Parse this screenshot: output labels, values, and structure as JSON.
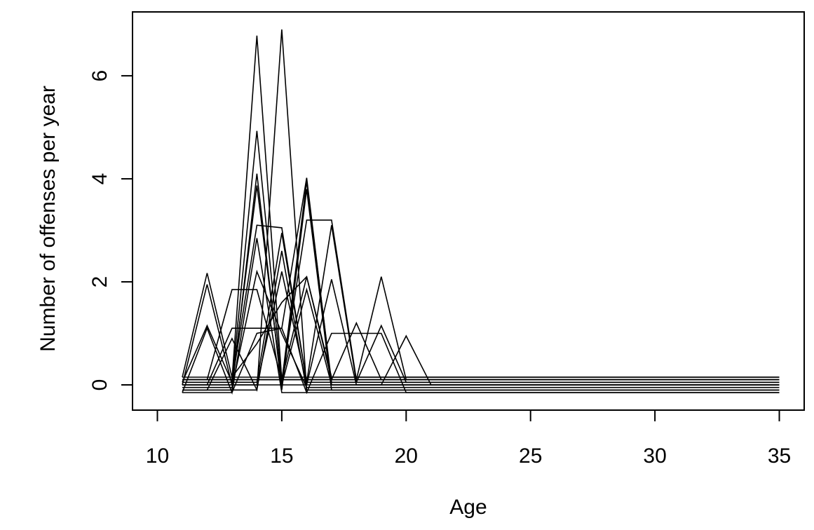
{
  "chart_data": {
    "type": "line",
    "xlabel": "Age",
    "ylabel": "Number of offenses per year",
    "x": [
      11,
      12,
      13,
      14,
      15,
      16,
      17,
      18,
      19,
      20,
      21,
      22,
      23,
      24,
      25,
      26,
      27,
      28,
      29,
      30,
      31,
      32,
      33,
      34,
      35
    ],
    "xlim": [
      9.0,
      36.0
    ],
    "ylim": [
      -0.49,
      7.24
    ],
    "xticks": [
      10,
      15,
      20,
      25,
      30,
      35
    ],
    "yticks": [
      0,
      2,
      4,
      6
    ],
    "series": [
      {
        "color": "#000000",
        "values": [
          0.1,
          0.1,
          0.1,
          6.78,
          0.1,
          0.1,
          0.1,
          0.1,
          0.1,
          0.1,
          0.1,
          0.1,
          0.1,
          0.1,
          0.1,
          0.1,
          0.1,
          0.1,
          0.1,
          0.1,
          0.1,
          0.1,
          0.1,
          0.1,
          0.1
        ]
      },
      {
        "color": "#000000",
        "values": [
          -0.1,
          -0.1,
          -0.1,
          -0.1,
          6.9,
          -0.1,
          -0.1,
          -0.1,
          -0.1,
          -0.1,
          -0.1,
          -0.1,
          -0.1,
          -0.1,
          -0.1,
          -0.1,
          -0.1,
          -0.1,
          -0.1,
          -0.1,
          -0.1,
          -0.1,
          -0.1,
          -0.1,
          -0.1
        ]
      },
      {
        "color": "#000000",
        "values": [
          0.15,
          2.17,
          0.15,
          0.15,
          0.15,
          0.15,
          0.15,
          0.15,
          0.15,
          0.15,
          0.15,
          0.15,
          0.15,
          0.15,
          0.15,
          0.15,
          0.15,
          0.15,
          0.15,
          0.15,
          0.15,
          0.15,
          0.15,
          0.15,
          0.15
        ]
      },
      {
        "color": "#000000",
        "values": [
          0,
          1.95,
          0,
          3.87,
          0,
          0,
          0,
          0,
          0,
          0,
          0,
          0,
          0,
          0,
          0,
          0,
          0,
          0,
          0,
          0,
          0,
          0,
          0,
          0,
          0
        ]
      },
      {
        "color": "#000000",
        "values": [
          -0.15,
          1.1,
          -0.15,
          2.85,
          -0.15,
          -0.15,
          -0.15,
          -0.15,
          -0.15,
          -0.15,
          -0.15,
          -0.15,
          -0.15,
          -0.15,
          -0.15,
          -0.15,
          -0.15,
          -0.15,
          -0.15,
          -0.15,
          -0.15,
          -0.15,
          -0.15,
          -0.15,
          -0.15
        ]
      },
      {
        "color": "#000000",
        "values": [
          0.05,
          1.15,
          0.05,
          4.93,
          0.05,
          3.95,
          0.05,
          0.05,
          0.05,
          0.05,
          0.05,
          0.05,
          0.05,
          0.05,
          0.05,
          0.05,
          0.05,
          0.05,
          0.05,
          0.05,
          0.05,
          0.05,
          0.05,
          0.05,
          0.05
        ]
      },
      {
        "color": "#000000",
        "values": [
          0.1,
          0.1,
          1.85,
          1.85,
          0.1,
          3.2,
          3.2,
          0.1,
          0.1,
          0.1,
          0.1,
          0.1,
          0.1,
          0.1,
          0.1,
          0.1,
          0.1,
          0.1,
          0.1,
          0.1,
          0.1,
          0.1,
          0.1,
          0.1,
          0.1
        ]
      },
      {
        "color": "#000000",
        "values": [
          0,
          0,
          1.1,
          1.1,
          1.1,
          4.02,
          0,
          0,
          0,
          0,
          0,
          0,
          0,
          0,
          0,
          0,
          0,
          0,
          0,
          0,
          0,
          0,
          0,
          0,
          0
        ]
      },
      {
        "color": "#000000",
        "values": [
          -0.1,
          -0.1,
          -0.1,
          4.1,
          -0.1,
          3.8,
          -0.1,
          -0.1,
          -0.1,
          -0.1,
          -0.1,
          -0.1,
          -0.1,
          -0.1,
          -0.1,
          -0.1,
          -0.1,
          -0.1,
          -0.1,
          -0.1,
          -0.1,
          -0.1,
          -0.1,
          -0.1,
          -0.1
        ]
      },
      {
        "color": "#000000",
        "values": [
          0.05,
          0.05,
          0.05,
          3.1,
          3.05,
          0.05,
          3.1,
          0.05,
          0.05,
          0.05,
          0.05,
          0.05,
          0.05,
          0.05,
          0.05,
          0.05,
          0.05,
          0.05,
          0.05,
          0.05,
          0.05,
          0.05,
          0.05,
          0.05,
          0.05
        ]
      },
      {
        "color": "#000000",
        "values": [
          0,
          0,
          0,
          0,
          2.2,
          0,
          2.05,
          0,
          0,
          0,
          0,
          0,
          0,
          0,
          0,
          0,
          0,
          0,
          0,
          0,
          0,
          0,
          0,
          0,
          0
        ]
      },
      {
        "color": "#000000",
        "values": [
          0.1,
          0.1,
          0.1,
          0.1,
          0.1,
          2.1,
          0.1,
          1.2,
          0.1,
          0.1,
          0.1,
          0.1,
          0.1,
          0.1,
          0.1,
          0.1,
          0.1,
          0.1,
          0.1,
          0.1,
          0.1,
          0.1,
          0.1,
          0.1,
          0.1
        ]
      },
      {
        "color": "#000000",
        "values": [
          0.1,
          0.1,
          0.1,
          0.1,
          0.1,
          0.1,
          0.1,
          0.1,
          2.1,
          0.1,
          0.1,
          0.1,
          0.1,
          0.1,
          0.1,
          0.1,
          0.1,
          0.1,
          0.1,
          0.1,
          0.1,
          0.1,
          0.1,
          0.1,
          0.1
        ]
      },
      {
        "color": "#000000",
        "values": [
          -0.15,
          -0.15,
          -0.15,
          1.0,
          1.1,
          -0.15,
          1.0,
          1.0,
          1.0,
          -0.15,
          -0.15,
          -0.15,
          -0.15,
          -0.15,
          -0.15,
          -0.15,
          -0.15,
          -0.15,
          -0.15,
          -0.15,
          -0.15,
          -0.15,
          -0.15,
          -0.15,
          -0.15
        ]
      },
      {
        "color": "#000000",
        "values": [
          0,
          0,
          0,
          0,
          0,
          1.85,
          0,
          0,
          0,
          0.95,
          0,
          0,
          0,
          0,
          0,
          0,
          0,
          0,
          0,
          0,
          0,
          0,
          0,
          0,
          0
        ]
      },
      {
        "color": "#000000",
        "values": [
          0.05,
          0.05,
          0.05,
          0.05,
          2.95,
          0.05,
          0.05,
          0.05,
          1.15,
          0.05,
          0.05,
          0.05,
          0.05,
          0.05,
          0.05,
          0.05,
          0.05,
          0.05,
          0.05,
          0.05,
          0.05,
          0.05,
          0.05,
          0.05,
          0.05
        ]
      },
      {
        "color": "#000000",
        "values": [
          -0.05,
          -0.05,
          -0.05,
          2.2,
          1.0,
          -0.05,
          -0.05,
          -0.05,
          -0.05,
          -0.05,
          -0.05,
          -0.05,
          -0.05,
          -0.05,
          -0.05,
          -0.05,
          -0.05,
          -0.05,
          -0.05,
          -0.05,
          -0.05,
          -0.05,
          -0.05,
          -0.05,
          -0.05
        ]
      },
      {
        "color": "#000000",
        "values": [
          0.15,
          0.15,
          0.15,
          0.8,
          1.6,
          2.1,
          0.15,
          0.15,
          0.15,
          0.15,
          0.15,
          0.15,
          0.15,
          0.15,
          0.15,
          0.15,
          0.15,
          0.15,
          0.15,
          0.15,
          0.15,
          0.15,
          0.15,
          0.15,
          0.15
        ]
      },
      {
        "color": "#000000",
        "values": [
          -0.1,
          -0.1,
          0.9,
          -0.1,
          2.6,
          -0.1,
          -0.1,
          -0.1,
          -0.1,
          -0.1,
          -0.1,
          -0.1,
          -0.1,
          -0.1,
          -0.1,
          -0.1,
          -0.1,
          -0.1,
          -0.1,
          -0.1,
          -0.1,
          -0.1,
          -0.1,
          -0.1,
          -0.1
        ]
      }
    ]
  }
}
